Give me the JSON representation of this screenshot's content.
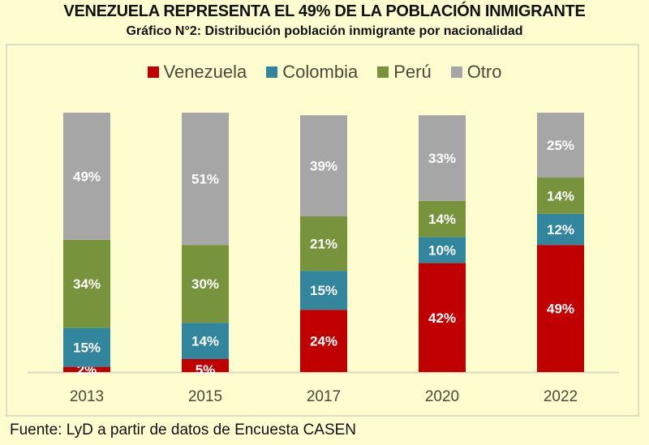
{
  "chart_data": {
    "type": "bar",
    "stacked": true,
    "title": "VENEZUELA REPRESENTA EL 49% DE LA POBLACIÓN INMIGRANTE",
    "subtitle": "Gráfico N°2: Distribución población inmigrante por nacionalidad",
    "xlabel": "",
    "ylabel": "",
    "ylim": [
      0,
      100
    ],
    "grid": false,
    "legend_position": "top-center",
    "categories": [
      "2013",
      "2015",
      "2017",
      "2020",
      "2022"
    ],
    "series": [
      {
        "name": "Venezuela",
        "color": "#c00000",
        "values": [
          2,
          5,
          24,
          42,
          49
        ],
        "labels": [
          "2%",
          "5%",
          "24%",
          "42%",
          "49%"
        ]
      },
      {
        "name": "Colombia",
        "color": "#31859c",
        "values": [
          15,
          14,
          15,
          10,
          12
        ],
        "labels": [
          "15%",
          "14%",
          "15%",
          "10%",
          "12%"
        ]
      },
      {
        "name": "Perú",
        "color": "#77933c",
        "values": [
          34,
          30,
          21,
          14,
          14
        ],
        "labels": [
          "34%",
          "30%",
          "21%",
          "14%",
          "14%"
        ]
      },
      {
        "name": "Otro",
        "color": "#a6a6a6",
        "values": [
          49,
          51,
          39,
          33,
          25
        ],
        "labels": [
          "49%",
          "51%",
          "39%",
          "33%",
          "25%"
        ]
      }
    ],
    "source": "Fuente: LyD a partir de datos de Encuesta CASEN"
  }
}
